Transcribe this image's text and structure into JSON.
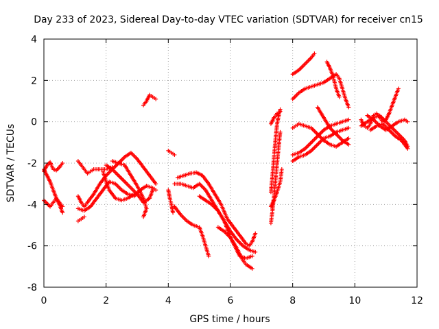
{
  "chart_data": {
    "type": "scatter",
    "title": "Day 233 of 2023, Sidereal Day-to-day VTEC variation (SDTVAR) for receiver cn15",
    "xlabel": "GPS time / hours",
    "ylabel": "SDTVAR / TECUs",
    "xlim": [
      0,
      12
    ],
    "ylim": [
      -8,
      4
    ],
    "xticks": [
      "0",
      "2",
      "4",
      "6",
      "8",
      "10",
      "12"
    ],
    "yticks": [
      "-8",
      "-6",
      "-4",
      "-2",
      "0",
      "2",
      "4"
    ],
    "grid": true,
    "marker": "plus",
    "color": "#ff0000",
    "series": [
      {
        "points": [
          [
            0.0,
            -2.4
          ],
          [
            0.1,
            -2.1
          ],
          [
            0.2,
            -1.95
          ],
          [
            0.3,
            -2.3
          ],
          [
            0.4,
            -2.35
          ],
          [
            0.5,
            -2.2
          ],
          [
            0.6,
            -2.0
          ]
        ]
      },
      {
        "points": [
          [
            0.0,
            -2.3
          ],
          [
            0.1,
            -2.6
          ],
          [
            0.2,
            -2.9
          ],
          [
            0.3,
            -3.3
          ],
          [
            0.4,
            -3.7
          ],
          [
            0.5,
            -4.0
          ],
          [
            0.6,
            -4.4
          ]
        ]
      },
      {
        "points": [
          [
            0.0,
            -3.8
          ],
          [
            0.1,
            -3.95
          ],
          [
            0.2,
            -4.1
          ],
          [
            0.3,
            -3.9
          ],
          [
            0.4,
            -3.7
          ],
          [
            0.5,
            -3.9
          ],
          [
            0.6,
            -4.1
          ]
        ]
      },
      {
        "points": [
          [
            1.1,
            -1.9
          ],
          [
            1.2,
            -2.1
          ],
          [
            1.3,
            -2.3
          ],
          [
            1.4,
            -2.5
          ],
          [
            1.5,
            -2.4
          ],
          [
            1.6,
            -2.3
          ],
          [
            1.8,
            -2.3
          ],
          [
            2.0,
            -2.3
          ],
          [
            2.2,
            -2.2
          ]
        ]
      },
      {
        "points": [
          [
            1.1,
            -4.8
          ],
          [
            1.2,
            -4.7
          ],
          [
            1.3,
            -4.6
          ]
        ]
      },
      {
        "points": [
          [
            1.1,
            -3.6
          ],
          [
            1.2,
            -3.9
          ],
          [
            1.3,
            -4.1
          ],
          [
            1.4,
            -3.9
          ],
          [
            1.6,
            -3.5
          ],
          [
            1.8,
            -3.0
          ],
          [
            2.0,
            -2.6
          ],
          [
            2.2,
            -2.3
          ],
          [
            2.4,
            -2.0
          ],
          [
            2.6,
            -1.7
          ],
          [
            2.8,
            -1.5
          ],
          [
            3.0,
            -1.8
          ],
          [
            3.2,
            -2.2
          ],
          [
            3.4,
            -2.6
          ],
          [
            3.6,
            -3.0
          ]
        ]
      },
      {
        "points": [
          [
            1.1,
            -4.2
          ],
          [
            1.3,
            -4.3
          ],
          [
            1.5,
            -4.1
          ],
          [
            1.7,
            -3.7
          ],
          [
            1.9,
            -3.3
          ],
          [
            2.1,
            -2.9
          ],
          [
            2.3,
            -3.0
          ],
          [
            2.5,
            -3.3
          ],
          [
            2.7,
            -3.5
          ],
          [
            2.9,
            -3.6
          ],
          [
            3.1,
            -3.3
          ],
          [
            3.3,
            -3.1
          ],
          [
            3.5,
            -3.2
          ],
          [
            3.6,
            -3.3
          ]
        ]
      },
      {
        "points": [
          [
            1.9,
            -2.4
          ],
          [
            2.0,
            -2.9
          ],
          [
            2.1,
            -3.3
          ],
          [
            2.3,
            -3.7
          ],
          [
            2.5,
            -3.8
          ],
          [
            2.7,
            -3.7
          ],
          [
            2.9,
            -3.5
          ]
        ]
      },
      {
        "points": [
          [
            2.0,
            -2.1
          ],
          [
            2.2,
            -2.3
          ],
          [
            2.4,
            -2.6
          ],
          [
            2.6,
            -2.9
          ],
          [
            2.8,
            -3.2
          ],
          [
            3.0,
            -3.5
          ],
          [
            3.2,
            -3.9
          ],
          [
            3.4,
            -3.7
          ],
          [
            3.5,
            -3.3
          ]
        ]
      },
      {
        "points": [
          [
            2.2,
            -1.9
          ],
          [
            2.4,
            -2.0
          ],
          [
            2.6,
            -2.1
          ],
          [
            2.8,
            -2.6
          ],
          [
            3.0,
            -3.1
          ],
          [
            3.2,
            -3.7
          ],
          [
            3.3,
            -4.2
          ],
          [
            3.2,
            -4.6
          ]
        ]
      },
      {
        "points": [
          [
            3.2,
            0.8
          ],
          [
            3.3,
            1.0
          ],
          [
            3.4,
            1.3
          ],
          [
            3.5,
            1.2
          ],
          [
            3.6,
            1.1
          ]
        ]
      },
      {
        "points": [
          [
            4.0,
            -1.4
          ],
          [
            4.1,
            -1.5
          ],
          [
            4.2,
            -1.6
          ]
        ]
      },
      {
        "points": [
          [
            4.0,
            -3.3
          ],
          [
            4.05,
            -3.7
          ],
          [
            4.1,
            -4.0
          ],
          [
            4.15,
            -4.4
          ]
        ]
      },
      {
        "points": [
          [
            4.3,
            -2.7
          ],
          [
            4.5,
            -2.6
          ],
          [
            4.7,
            -2.5
          ],
          [
            4.9,
            -2.45
          ],
          [
            5.1,
            -2.6
          ],
          [
            5.3,
            -3.0
          ],
          [
            5.5,
            -3.5
          ],
          [
            5.7,
            -4.0
          ],
          [
            5.9,
            -4.7
          ],
          [
            6.1,
            -5.1
          ],
          [
            6.3,
            -5.5
          ],
          [
            6.5,
            -5.9
          ],
          [
            6.6,
            -6.0
          ],
          [
            6.7,
            -5.8
          ],
          [
            6.8,
            -5.4
          ]
        ]
      },
      {
        "points": [
          [
            4.2,
            -3.0
          ],
          [
            4.4,
            -3.0
          ],
          [
            4.6,
            -3.1
          ],
          [
            4.8,
            -3.2
          ],
          [
            5.0,
            -3.0
          ],
          [
            5.2,
            -3.3
          ],
          [
            5.4,
            -3.8
          ],
          [
            5.6,
            -4.3
          ],
          [
            5.8,
            -4.8
          ],
          [
            6.0,
            -5.3
          ],
          [
            6.2,
            -5.7
          ],
          [
            6.4,
            -6.0
          ],
          [
            6.6,
            -6.2
          ],
          [
            6.8,
            -6.3
          ]
        ]
      },
      {
        "points": [
          [
            4.2,
            -4.1
          ],
          [
            4.4,
            -4.5
          ],
          [
            4.6,
            -4.8
          ],
          [
            4.8,
            -5.0
          ],
          [
            5.0,
            -5.1
          ],
          [
            5.1,
            -5.5
          ],
          [
            5.2,
            -6.0
          ],
          [
            5.3,
            -6.5
          ]
        ]
      },
      {
        "points": [
          [
            5.0,
            -3.6
          ],
          [
            5.2,
            -3.8
          ],
          [
            5.4,
            -4.0
          ],
          [
            5.6,
            -4.3
          ],
          [
            5.8,
            -4.8
          ],
          [
            6.0,
            -5.6
          ],
          [
            6.2,
            -6.2
          ],
          [
            6.3,
            -6.5
          ],
          [
            6.5,
            -6.6
          ],
          [
            6.7,
            -6.5
          ]
        ]
      },
      {
        "points": [
          [
            5.6,
            -5.1
          ],
          [
            5.8,
            -5.3
          ],
          [
            6.0,
            -5.6
          ],
          [
            6.2,
            -6.1
          ],
          [
            6.4,
            -6.7
          ],
          [
            6.5,
            -6.9
          ],
          [
            6.7,
            -7.1
          ]
        ]
      },
      {
        "points": [
          [
            7.3,
            -4.9
          ],
          [
            7.35,
            -4.3
          ],
          [
            7.4,
            -3.6
          ],
          [
            7.45,
            -2.8
          ],
          [
            7.5,
            -2.0
          ],
          [
            7.55,
            -1.2
          ],
          [
            7.6,
            -0.5
          ]
        ]
      },
      {
        "points": [
          [
            7.3,
            -3.4
          ],
          [
            7.35,
            -2.6
          ],
          [
            7.4,
            -1.7
          ],
          [
            7.45,
            -0.8
          ],
          [
            7.5,
            -0.1
          ],
          [
            7.55,
            0.3
          ],
          [
            7.6,
            0.6
          ]
        ]
      },
      {
        "points": [
          [
            7.3,
            -4.1
          ],
          [
            7.4,
            -3.8
          ],
          [
            7.5,
            -3.4
          ],
          [
            7.6,
            -2.9
          ],
          [
            7.65,
            -2.3
          ]
        ]
      },
      {
        "points": [
          [
            7.3,
            -0.1
          ],
          [
            7.4,
            0.2
          ],
          [
            7.5,
            0.4
          ],
          [
            7.6,
            0.5
          ]
        ]
      },
      {
        "points": [
          [
            8.0,
            2.3
          ],
          [
            8.2,
            2.5
          ],
          [
            8.4,
            2.8
          ],
          [
            8.6,
            3.1
          ],
          [
            8.7,
            3.3
          ]
        ]
      },
      {
        "points": [
          [
            8.0,
            1.1
          ],
          [
            8.2,
            1.4
          ],
          [
            8.4,
            1.6
          ],
          [
            8.6,
            1.7
          ],
          [
            8.8,
            1.8
          ],
          [
            9.0,
            1.9
          ],
          [
            9.2,
            2.1
          ],
          [
            9.4,
            2.3
          ],
          [
            9.5,
            2.1
          ],
          [
            9.6,
            1.6
          ],
          [
            9.7,
            1.1
          ],
          [
            9.8,
            0.7
          ]
        ]
      },
      {
        "points": [
          [
            8.0,
            -0.3
          ],
          [
            8.1,
            -0.2
          ],
          [
            8.2,
            -0.1
          ],
          [
            8.4,
            -0.2
          ],
          [
            8.6,
            -0.3
          ],
          [
            8.8,
            -0.6
          ],
          [
            9.0,
            -0.9
          ],
          [
            9.2,
            -1.1
          ],
          [
            9.4,
            -1.2
          ],
          [
            9.6,
            -1.0
          ],
          [
            9.8,
            -0.8
          ]
        ]
      },
      {
        "points": [
          [
            8.0,
            -1.6
          ],
          [
            8.2,
            -1.5
          ],
          [
            8.4,
            -1.3
          ],
          [
            8.6,
            -1.0
          ],
          [
            8.8,
            -0.7
          ],
          [
            9.0,
            -0.4
          ],
          [
            9.2,
            -0.2
          ],
          [
            9.4,
            -0.1
          ],
          [
            9.6,
            0.0
          ],
          [
            9.8,
            0.1
          ]
        ]
      },
      {
        "points": [
          [
            8.0,
            -1.9
          ],
          [
            8.2,
            -1.7
          ],
          [
            8.4,
            -1.6
          ],
          [
            8.6,
            -1.4
          ],
          [
            8.8,
            -1.1
          ],
          [
            9.0,
            -0.8
          ],
          [
            9.2,
            -0.7
          ],
          [
            9.4,
            -0.5
          ],
          [
            9.6,
            -0.4
          ],
          [
            9.8,
            -0.3
          ]
        ]
      },
      {
        "points": [
          [
            8.8,
            0.7
          ],
          [
            9.0,
            0.2
          ],
          [
            9.2,
            -0.3
          ],
          [
            9.4,
            -0.6
          ],
          [
            9.6,
            -0.9
          ],
          [
            9.8,
            -1.1
          ]
        ]
      },
      {
        "points": [
          [
            9.1,
            2.9
          ],
          [
            9.2,
            2.6
          ],
          [
            9.3,
            2.2
          ],
          [
            9.4,
            1.6
          ],
          [
            9.5,
            1.2
          ]
        ]
      },
      {
        "points": [
          [
            10.2,
            0.1
          ],
          [
            10.3,
            -0.2
          ],
          [
            10.4,
            -0.3
          ],
          [
            10.5,
            -0.1
          ],
          [
            10.6,
            0.3
          ],
          [
            10.7,
            0.4
          ],
          [
            10.8,
            0.2
          ],
          [
            10.9,
            0.0
          ],
          [
            11.0,
            0.1
          ],
          [
            11.1,
            0.4
          ],
          [
            11.2,
            0.8
          ],
          [
            11.3,
            1.2
          ],
          [
            11.4,
            1.6
          ]
        ]
      },
      {
        "points": [
          [
            10.2,
            -0.2
          ],
          [
            10.4,
            0.0
          ],
          [
            10.6,
            0.2
          ],
          [
            10.8,
            0.3
          ],
          [
            11.0,
            0.0
          ],
          [
            11.2,
            -0.3
          ],
          [
            11.4,
            -0.6
          ],
          [
            11.6,
            -0.9
          ],
          [
            11.7,
            -1.2
          ]
        ]
      },
      {
        "points": [
          [
            10.4,
            0.3
          ],
          [
            10.6,
            0.1
          ],
          [
            10.8,
            -0.2
          ],
          [
            11.0,
            -0.4
          ],
          [
            11.2,
            -0.2
          ],
          [
            11.4,
            0.0
          ],
          [
            11.6,
            0.1
          ],
          [
            11.7,
            0.0
          ]
        ]
      },
      {
        "points": [
          [
            10.5,
            -0.4
          ],
          [
            10.7,
            -0.2
          ],
          [
            10.9,
            -0.1
          ],
          [
            11.1,
            -0.4
          ],
          [
            11.3,
            -0.7
          ],
          [
            11.5,
            -0.9
          ],
          [
            11.7,
            -1.3
          ]
        ]
      }
    ]
  }
}
